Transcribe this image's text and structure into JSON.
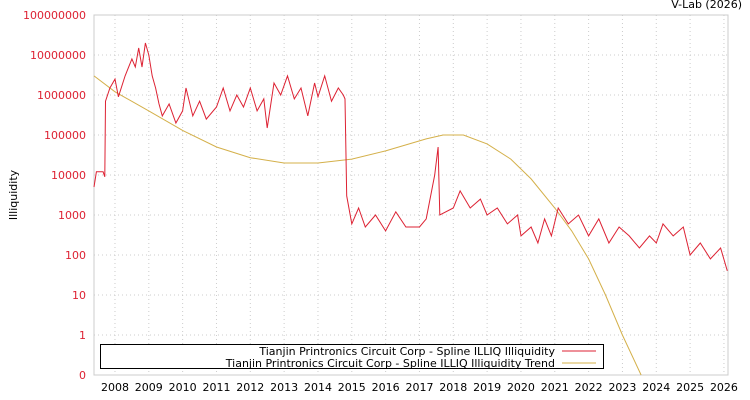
{
  "watermark": "V-Lab (2026)",
  "chart_data": {
    "type": "line",
    "title": "",
    "xlabel": "",
    "ylabel": "Illiquidity",
    "yscale": "log",
    "ylim": [
      0.1,
      100000000
    ],
    "xlim": [
      2007.38,
      2026.12
    ],
    "grid": true,
    "legend_position": "bottom-left",
    "y_ticks": [
      {
        "v": 100000000,
        "label": "100000000"
      },
      {
        "v": 10000000,
        "label": "10000000"
      },
      {
        "v": 1000000,
        "label": "1000000"
      },
      {
        "v": 100000,
        "label": "100000"
      },
      {
        "v": 10000,
        "label": "10000"
      },
      {
        "v": 1000,
        "label": "1000"
      },
      {
        "v": 100,
        "label": "100"
      },
      {
        "v": 10,
        "label": "10"
      },
      {
        "v": 1,
        "label": "1"
      },
      {
        "v": 0.1,
        "label": "0"
      }
    ],
    "x_ticks": [
      "2008",
      "2009",
      "2010",
      "2011",
      "2012",
      "2013",
      "2014",
      "2015",
      "2016",
      "2017",
      "2018",
      "2019",
      "2020",
      "2021",
      "2022",
      "2023",
      "2024",
      "2025",
      "2026"
    ],
    "series": [
      {
        "name": "Tianjin Printronics Circuit Corp - Spline ILLIQ Illiquidity",
        "color": "#dd2233",
        "points": [
          [
            2007.38,
            5000
          ],
          [
            2007.45,
            12000
          ],
          [
            2007.65,
            12000
          ],
          [
            2007.7,
            9000
          ],
          [
            2007.72,
            700000
          ],
          [
            2007.85,
            1500000
          ],
          [
            2008.0,
            2500000
          ],
          [
            2008.1,
            900000
          ],
          [
            2008.3,
            3000000
          ],
          [
            2008.5,
            8000000
          ],
          [
            2008.6,
            5000000
          ],
          [
            2008.7,
            15000000
          ],
          [
            2008.8,
            5000000
          ],
          [
            2008.9,
            20000000
          ],
          [
            2009.0,
            10000000
          ],
          [
            2009.1,
            3000000
          ],
          [
            2009.2,
            1500000
          ],
          [
            2009.3,
            600000
          ],
          [
            2009.4,
            300000
          ],
          [
            2009.6,
            600000
          ],
          [
            2009.8,
            200000
          ],
          [
            2010.0,
            400000
          ],
          [
            2010.1,
            1500000
          ],
          [
            2010.3,
            300000
          ],
          [
            2010.5,
            700000
          ],
          [
            2010.7,
            250000
          ],
          [
            2011.0,
            500000
          ],
          [
            2011.2,
            1500000
          ],
          [
            2011.4,
            400000
          ],
          [
            2011.6,
            1000000
          ],
          [
            2011.8,
            500000
          ],
          [
            2012.0,
            1500000
          ],
          [
            2012.2,
            400000
          ],
          [
            2012.4,
            800000
          ],
          [
            2012.5,
            150000
          ],
          [
            2012.7,
            2000000
          ],
          [
            2012.9,
            1000000
          ],
          [
            2013.1,
            3000000
          ],
          [
            2013.3,
            800000
          ],
          [
            2013.5,
            1500000
          ],
          [
            2013.7,
            300000
          ],
          [
            2013.9,
            2000000
          ],
          [
            2014.0,
            900000
          ],
          [
            2014.2,
            3000000
          ],
          [
            2014.4,
            700000
          ],
          [
            2014.6,
            1500000
          ],
          [
            2014.75,
            1000000
          ],
          [
            2014.8,
            800000
          ],
          [
            2014.85,
            3000
          ],
          [
            2015.0,
            600
          ],
          [
            2015.2,
            1500
          ],
          [
            2015.4,
            500
          ],
          [
            2015.7,
            1000
          ],
          [
            2016.0,
            400
          ],
          [
            2016.3,
            1200
          ],
          [
            2016.6,
            500
          ],
          [
            2017.0,
            500
          ],
          [
            2017.2,
            800
          ],
          [
            2017.45,
            10000
          ],
          [
            2017.55,
            50000
          ],
          [
            2017.6,
            1000
          ],
          [
            2018.0,
            1500
          ],
          [
            2018.2,
            4000
          ],
          [
            2018.5,
            1500
          ],
          [
            2018.8,
            2500
          ],
          [
            2019.0,
            1000
          ],
          [
            2019.3,
            1500
          ],
          [
            2019.6,
            600
          ],
          [
            2019.9,
            1000
          ],
          [
            2020.0,
            300
          ],
          [
            2020.3,
            500
          ],
          [
            2020.5,
            200
          ],
          [
            2020.7,
            800
          ],
          [
            2020.9,
            300
          ],
          [
            2021.1,
            1500
          ],
          [
            2021.4,
            600
          ],
          [
            2021.7,
            1000
          ],
          [
            2022.0,
            300
          ],
          [
            2022.3,
            800
          ],
          [
            2022.6,
            200
          ],
          [
            2022.9,
            500
          ],
          [
            2023.2,
            300
          ],
          [
            2023.5,
            150
          ],
          [
            2023.8,
            300
          ],
          [
            2024.0,
            200
          ],
          [
            2024.2,
            600
          ],
          [
            2024.5,
            300
          ],
          [
            2024.8,
            500
          ],
          [
            2025.0,
            100
          ],
          [
            2025.3,
            200
          ],
          [
            2025.6,
            80
          ],
          [
            2025.9,
            150
          ],
          [
            2026.1,
            40
          ]
        ]
      },
      {
        "name": "Tianjin Printronics Circuit Corp - Spline ILLIQ Illiquidity Trend",
        "color": "#d4b04a",
        "points": [
          [
            2007.38,
            3000000
          ],
          [
            2008,
            1200000
          ],
          [
            2009,
            400000
          ],
          [
            2010,
            130000
          ],
          [
            2011,
            50000
          ],
          [
            2012,
            27000
          ],
          [
            2013,
            20000
          ],
          [
            2014,
            20000
          ],
          [
            2015,
            25000
          ],
          [
            2016,
            40000
          ],
          [
            2016.7,
            60000
          ],
          [
            2017.2,
            80000
          ],
          [
            2017.7,
            100000
          ],
          [
            2018.3,
            100000
          ],
          [
            2019,
            60000
          ],
          [
            2019.7,
            25000
          ],
          [
            2020.3,
            8000
          ],
          [
            2021,
            1500
          ],
          [
            2021.5,
            400
          ],
          [
            2022,
            80
          ],
          [
            2022.5,
            10
          ],
          [
            2023,
            1
          ],
          [
            2023.55,
            0.1
          ]
        ]
      }
    ]
  }
}
